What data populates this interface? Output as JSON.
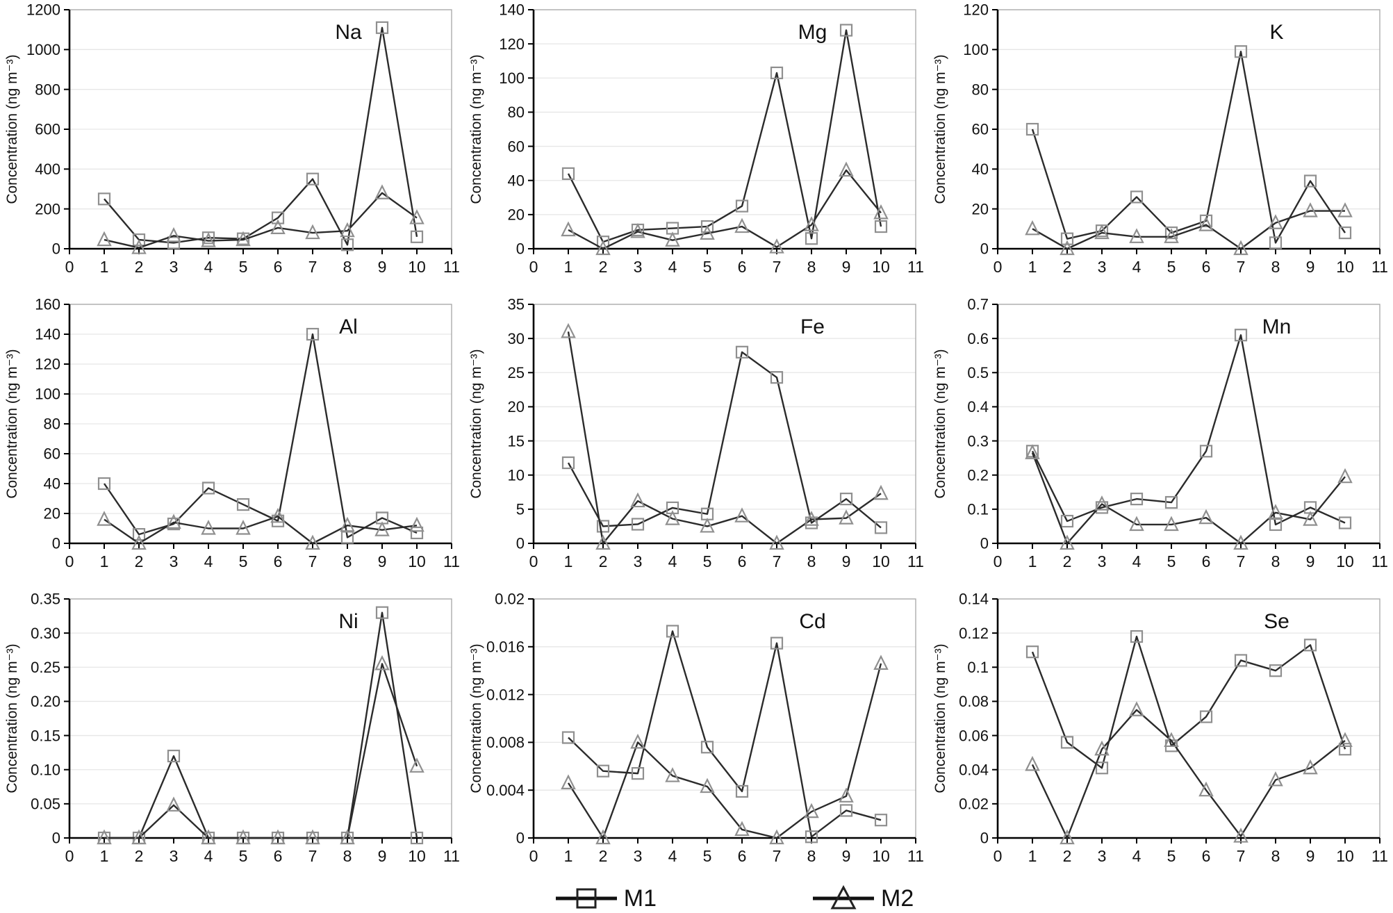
{
  "figure": {
    "y_axis_label": "Concentration (ng m⁻³)",
    "x_tick_labels": [
      "0",
      "1",
      "2",
      "3",
      "4",
      "5",
      "6",
      "7",
      "8",
      "9",
      "10",
      "11"
    ],
    "colors": {
      "line": "#2b2b2b",
      "marker": "#8f8f8f",
      "grid": "#e6e6e6",
      "axis": "#000000",
      "frame": "#a6a6a6",
      "text": "#111111",
      "background": "#ffffff"
    }
  },
  "legend": {
    "items": [
      {
        "label": "M1",
        "marker": "square"
      },
      {
        "label": "M2",
        "marker": "triangle"
      }
    ]
  },
  "chart_data": [
    {
      "type": "line",
      "title": "Na",
      "xlabel": "",
      "ylabel": "Concentration (ng m⁻³)",
      "xlim": [
        0,
        11
      ],
      "ylim": [
        0,
        1200
      ],
      "grid": true,
      "legend_position": "bottom-shared",
      "y_tick_labels": [
        "0",
        "200",
        "400",
        "600",
        "800",
        "1000",
        "1200"
      ],
      "x": [
        1,
        2,
        3,
        4,
        5,
        6,
        7,
        8,
        9,
        10
      ],
      "series": [
        {
          "name": "M1",
          "marker": "square",
          "values": [
            250,
            45,
            30,
            55,
            50,
            155,
            350,
            20,
            1110,
            60
          ]
        },
        {
          "name": "M2",
          "marker": "triangle",
          "values": [
            45,
            5,
            65,
            40,
            45,
            105,
            80,
            90,
            280,
            155
          ]
        }
      ]
    },
    {
      "type": "line",
      "title": "Mg",
      "xlabel": "",
      "ylabel": "Concentration (ng m⁻³)",
      "xlim": [
        0,
        11
      ],
      "ylim": [
        0,
        140
      ],
      "grid": true,
      "legend_position": "bottom-shared",
      "y_tick_labels": [
        "0",
        "20",
        "40",
        "60",
        "80",
        "100",
        "120",
        "140"
      ],
      "x": [
        1,
        2,
        3,
        4,
        5,
        6,
        7,
        8,
        9,
        10
      ],
      "series": [
        {
          "name": "M1",
          "marker": "square",
          "values": [
            44,
            4,
            11,
            12,
            13,
            25,
            103,
            6,
            128,
            13
          ]
        },
        {
          "name": "M2",
          "marker": "triangle",
          "values": [
            11,
            0,
            10,
            5,
            9,
            13,
            1,
            14,
            46,
            21
          ]
        }
      ]
    },
    {
      "type": "line",
      "title": "K",
      "xlabel": "",
      "ylabel": "Concentration (ng m⁻³)",
      "xlim": [
        0,
        11
      ],
      "ylim": [
        0,
        120
      ],
      "grid": true,
      "legend_position": "bottom-shared",
      "y_tick_labels": [
        "0",
        "20",
        "40",
        "60",
        "80",
        "100",
        "120"
      ],
      "x": [
        1,
        2,
        3,
        4,
        5,
        6,
        7,
        8,
        9,
        10
      ],
      "series": [
        {
          "name": "M1",
          "marker": "square",
          "values": [
            60,
            5,
            9,
            26,
            8,
            14,
            99,
            3,
            34,
            8
          ]
        },
        {
          "name": "M2",
          "marker": "triangle",
          "values": [
            10,
            0,
            8,
            6,
            6,
            12,
            0,
            13,
            19,
            19
          ]
        }
      ]
    },
    {
      "type": "line",
      "title": "Al",
      "xlabel": "",
      "ylabel": "Concentration (ng m⁻³)",
      "xlim": [
        0,
        11
      ],
      "ylim": [
        0,
        160
      ],
      "grid": true,
      "legend_position": "bottom-shared",
      "y_tick_labels": [
        "0",
        "20",
        "40",
        "60",
        "80",
        "100",
        "120",
        "140",
        "160"
      ],
      "x": [
        1,
        2,
        3,
        4,
        5,
        6,
        7,
        8,
        9,
        10
      ],
      "series": [
        {
          "name": "M1",
          "marker": "square",
          "values": [
            40,
            6,
            13,
            37,
            26,
            15,
            140,
            4,
            17,
            7
          ]
        },
        {
          "name": "M2",
          "marker": "triangle",
          "values": [
            16,
            0,
            14,
            10,
            10,
            18,
            0,
            12,
            9,
            12
          ]
        }
      ]
    },
    {
      "type": "line",
      "title": "Fe",
      "xlabel": "",
      "ylabel": "Concentration (ng m⁻³)",
      "xlim": [
        0,
        11
      ],
      "ylim": [
        0,
        35
      ],
      "grid": true,
      "legend_position": "bottom-shared",
      "y_tick_labels": [
        "0",
        "5",
        "10",
        "15",
        "20",
        "25",
        "30",
        "35"
      ],
      "x": [
        1,
        2,
        3,
        4,
        5,
        6,
        7,
        8,
        9,
        10
      ],
      "series": [
        {
          "name": "M1",
          "marker": "square",
          "values": [
            11.8,
            2.5,
            2.8,
            5.2,
            4.3,
            28,
            24.3,
            3,
            6.5,
            2.3
          ]
        },
        {
          "name": "M2",
          "marker": "triangle",
          "values": [
            31,
            0,
            6.2,
            3.6,
            2.5,
            4,
            0,
            3.5,
            3.7,
            7.3
          ]
        }
      ]
    },
    {
      "type": "line",
      "title": "Mn",
      "xlabel": "",
      "ylabel": "Concentration (ng m⁻³)",
      "xlim": [
        0,
        11
      ],
      "ylim": [
        0,
        0.7
      ],
      "grid": true,
      "legend_position": "bottom-shared",
      "y_tick_labels": [
        "0",
        "0.1",
        "0.2",
        "0.3",
        "0.4",
        "0.5",
        "0.6",
        "0.7"
      ],
      "x": [
        1,
        2,
        3,
        4,
        5,
        6,
        7,
        8,
        9,
        10
      ],
      "series": [
        {
          "name": "M1",
          "marker": "square",
          "values": [
            0.27,
            0.065,
            0.105,
            0.13,
            0.12,
            0.27,
            0.61,
            0.055,
            0.105,
            0.06
          ]
        },
        {
          "name": "M2",
          "marker": "triangle",
          "values": [
            0.265,
            0,
            0.115,
            0.055,
            0.055,
            0.075,
            0,
            0.09,
            0.07,
            0.195
          ]
        }
      ]
    },
    {
      "type": "line",
      "title": "Ni",
      "xlabel": "",
      "ylabel": "Concentration (ng m⁻³)",
      "xlim": [
        0,
        11
      ],
      "ylim": [
        0,
        0.35
      ],
      "grid": true,
      "legend_position": "bottom-shared",
      "y_tick_labels": [
        "0",
        "0.05",
        "0.10",
        "0.15",
        "0.20",
        "0.25",
        "0.30",
        "0.35"
      ],
      "x": [
        1,
        2,
        3,
        4,
        5,
        6,
        7,
        8,
        9,
        10
      ],
      "series": [
        {
          "name": "M1",
          "marker": "square",
          "values": [
            0,
            0,
            0.12,
            0,
            0,
            0,
            0,
            0,
            0.33,
            0
          ]
        },
        {
          "name": "M2",
          "marker": "triangle",
          "values": [
            0,
            0,
            0.048,
            0,
            0,
            0,
            0,
            0,
            0.255,
            0.105
          ]
        }
      ]
    },
    {
      "type": "line",
      "title": "Cd",
      "xlabel": "",
      "ylabel": "Concentration (ng m⁻³)",
      "xlim": [
        0,
        11
      ],
      "ylim": [
        0,
        0.02
      ],
      "grid": true,
      "legend_position": "bottom-shared",
      "y_tick_labels": [
        "0",
        "0.004",
        "0.008",
        "0.012",
        "0.016",
        "0.02"
      ],
      "x": [
        1,
        2,
        3,
        4,
        5,
        6,
        7,
        8,
        9,
        10
      ],
      "series": [
        {
          "name": "M1",
          "marker": "square",
          "values": [
            0.0084,
            0.0056,
            0.0054,
            0.0173,
            0.0076,
            0.0039,
            0.0163,
            0.0001,
            0.0023,
            0.0015
          ]
        },
        {
          "name": "M2",
          "marker": "triangle",
          "values": [
            0.0046,
            0,
            0.008,
            0.0052,
            0.0043,
            0.0007,
            0,
            0.0022,
            0.0035,
            0.0146
          ]
        }
      ]
    },
    {
      "type": "line",
      "title": "Se",
      "xlabel": "",
      "ylabel": "Concentration (ng m⁻³)",
      "xlim": [
        0,
        11
      ],
      "ylim": [
        0,
        0.14
      ],
      "grid": true,
      "legend_position": "bottom-shared",
      "y_tick_labels": [
        "0",
        "0.02",
        "0.04",
        "0.06",
        "0.08",
        "0.1",
        "0.12",
        "0.14"
      ],
      "x": [
        1,
        2,
        3,
        4,
        5,
        6,
        7,
        8,
        9,
        10
      ],
      "series": [
        {
          "name": "M1",
          "marker": "square",
          "values": [
            0.109,
            0.056,
            0.041,
            0.118,
            0.054,
            0.071,
            0.104,
            0.098,
            0.113,
            0.052
          ]
        },
        {
          "name": "M2",
          "marker": "triangle",
          "values": [
            0.043,
            0,
            0.052,
            0.075,
            0.057,
            0.028,
            0.001,
            0.034,
            0.041,
            0.057
          ]
        }
      ]
    }
  ]
}
